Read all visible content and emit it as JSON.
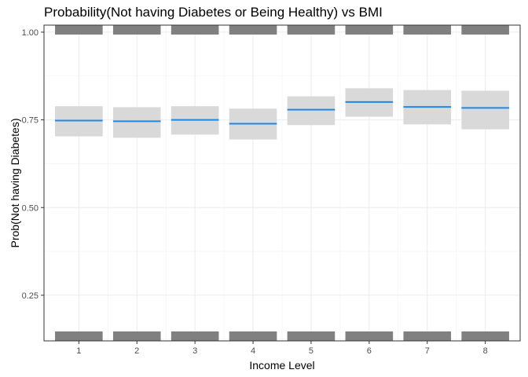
{
  "chart_data": {
    "type": "line",
    "title": "Probability(Not having Diabetes or Being Healthy) vs BMI",
    "xlabel": "Income Level",
    "ylabel": "Prob(Not having Diabetes)",
    "x": [
      1,
      2,
      3,
      4,
      5,
      6,
      7,
      8
    ],
    "xticks": [
      "1",
      "2",
      "3",
      "4",
      "5",
      "6",
      "7",
      "8"
    ],
    "ylim": [
      0.12,
      1.02
    ],
    "yticks": [
      "0.25",
      "0.50",
      "0.75",
      "1.00"
    ],
    "ytick_values": [
      0.25,
      0.5,
      0.75,
      1.0
    ],
    "series": [
      {
        "values": [
          0.748,
          0.746,
          0.75,
          0.739,
          0.779,
          0.801,
          0.787,
          0.784
        ],
        "lower": [
          0.703,
          0.699,
          0.708,
          0.694,
          0.735,
          0.759,
          0.737,
          0.723
        ],
        "upper": [
          0.789,
          0.786,
          0.789,
          0.782,
          0.817,
          0.84,
          0.835,
          0.833
        ],
        "color": "#1e88e5"
      }
    ],
    "rug_top": 1.0,
    "rug_bottom": 0.12,
    "band_color": "#d9d9d9",
    "rug_color": "#808080",
    "grid": true,
    "legend": "none"
  }
}
